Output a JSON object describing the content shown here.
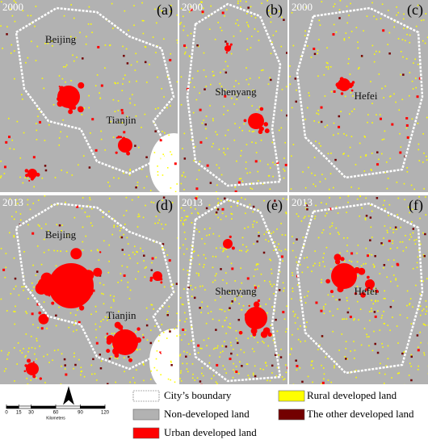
{
  "panels": [
    {
      "year": "2000",
      "label": "(a)",
      "cities": [
        "Beijing",
        "Tianjin"
      ]
    },
    {
      "year": "2000",
      "label": "(b)",
      "cities": [
        "Shenyang"
      ]
    },
    {
      "year": "2000",
      "label": "(c)",
      "cities": [
        "Hefei"
      ]
    },
    {
      "year": "2013",
      "label": "(d)",
      "cities": [
        "Beijing",
        "Tianjin"
      ]
    },
    {
      "year": "2013",
      "label": "(e)",
      "cities": [
        "Shenyang"
      ]
    },
    {
      "year": "2013",
      "label": "(f)",
      "cities": [
        "Hefei"
      ]
    }
  ],
  "legend": [
    {
      "label": "City’s boundary",
      "color": "#ffffff"
    },
    {
      "label": "Non-developed land",
      "color": "#b2b2b2"
    },
    {
      "label": "Urban developed land",
      "color": "#ff0000"
    },
    {
      "label": "Rural developed land",
      "color": "#ffff00"
    },
    {
      "label": "The other developed land",
      "color": "#730000"
    }
  ],
  "scale_bar": {
    "ticks": [
      0,
      15,
      30,
      60,
      90,
      120
    ],
    "unit": "Kilometers"
  }
}
